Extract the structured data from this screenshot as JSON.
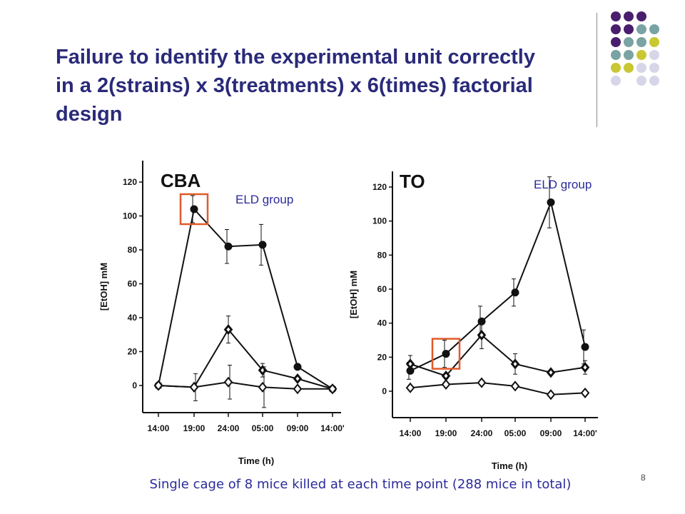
{
  "slide": {
    "title": "Failure to identify the experimental unit correctly in a 2(strains) x 3(treatments) x 6(times) factorial design",
    "caption": "Single cage of 8 mice killed at each time point (288 mice in total)",
    "page_number": "8",
    "decor_colors": [
      "#4a1e6e",
      "#7aa3a3",
      "#c8c832",
      "#d6d6e8"
    ]
  },
  "chart_data": [
    {
      "type": "line",
      "title": "CBA",
      "xlabel": "Time (h)",
      "ylabel": "[EtOH] mM",
      "categories": [
        "14:00",
        "19:00",
        "24:00",
        "05:00",
        "09:00",
        "14:00'"
      ],
      "ylim": [
        -15,
        130
      ],
      "yticks": [
        0,
        20,
        40,
        60,
        80,
        100,
        120
      ],
      "grid": false,
      "annotation": "ELD group",
      "highlight_index": 1,
      "series": [
        {
          "marker": "filled-circle",
          "values": [
            0,
            104,
            82,
            83,
            11,
            -2
          ],
          "errors": [
            0,
            8,
            10,
            12,
            0,
            0
          ]
        },
        {
          "marker": "filled-diamond",
          "values": [
            0,
            -1,
            33,
            9,
            4,
            -2
          ],
          "errors": [
            0,
            0,
            8,
            4,
            0,
            0
          ]
        },
        {
          "marker": "open-diamond",
          "values": [
            0,
            -1,
            2,
            -1,
            -2,
            -2
          ],
          "errors": [
            0,
            8,
            10,
            12,
            0,
            0
          ]
        }
      ]
    },
    {
      "type": "line",
      "title": "TO",
      "xlabel": "Time (h)",
      "ylabel": "[EtOH] mM",
      "categories": [
        "14:00",
        "19:00",
        "24:00",
        "05:00",
        "09:00",
        "14:00'"
      ],
      "ylim": [
        -15,
        130
      ],
      "yticks": [
        0,
        20,
        40,
        60,
        80,
        100,
        120
      ],
      "grid": false,
      "annotation": "ELD group",
      "highlight_index": 1,
      "series": [
        {
          "marker": "filled-circle",
          "values": [
            12,
            22,
            41,
            58,
            111,
            26
          ],
          "errors": [
            5,
            8,
            9,
            8,
            15,
            10
          ]
        },
        {
          "marker": "filled-diamond",
          "values": [
            16,
            9,
            33,
            16,
            11,
            14
          ],
          "errors": [
            5,
            0,
            8,
            6,
            0,
            4
          ]
        },
        {
          "marker": "open-diamond",
          "values": [
            2,
            4,
            5,
            3,
            -2,
            -1
          ],
          "errors": [
            0,
            0,
            0,
            0,
            0,
            0
          ]
        }
      ]
    }
  ]
}
